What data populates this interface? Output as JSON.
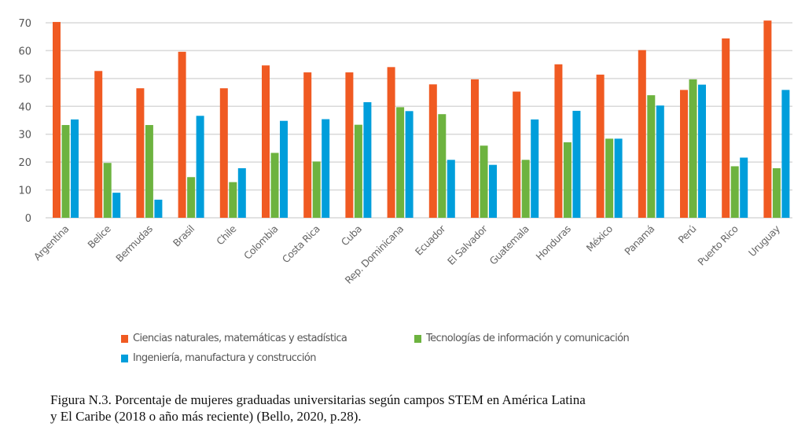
{
  "chart_data": {
    "type": "bar",
    "title": "",
    "xlabel": "",
    "ylabel": "",
    "ylim": [
      0,
      70
    ],
    "yticks": [
      0,
      10,
      20,
      30,
      40,
      50,
      60,
      70
    ],
    "ytick_labels": [
      "0",
      "10",
      "20",
      "30",
      "40",
      "50",
      "60",
      "70"
    ],
    "grid": true,
    "legend_position": "bottom",
    "categories": [
      "Argentina",
      "Belice",
      "Bermudas",
      "Brasil",
      "Chile",
      "Colombia",
      "Costa Rica",
      "Cuba",
      "Rep. Dominicana",
      "Ecuador",
      "El Salvador",
      "Guatemala",
      "Honduras",
      "México",
      "Panamá",
      "Perú",
      "Puerto Rico",
      "Uruguay"
    ],
    "series": [
      {
        "name": "Ciencias naturales, matemáticas y estadística",
        "color": "#F05A22",
        "values": [
          70.3,
          52.7,
          46.5,
          59.6,
          46.5,
          54.7,
          52.2,
          52.2,
          54.1,
          47.9,
          49.7,
          45.3,
          55.1,
          51.4,
          60.2,
          45.9,
          64.4,
          70.8
        ]
      },
      {
        "name": "Tecnologías de información y comunicación",
        "color": "#6DB33F",
        "values": [
          33.3,
          19.7,
          33.3,
          14.6,
          12.8,
          23.3,
          20.2,
          33.4,
          39.7,
          37.2,
          25.9,
          20.8,
          27.1,
          28.4,
          44.0,
          49.7,
          18.5,
          17.8
        ]
      },
      {
        "name": "Ingeniería, manufactura y construcción",
        "color": "#009EDB",
        "values": [
          35.3,
          9.0,
          6.5,
          36.6,
          17.8,
          34.8,
          35.4,
          41.5,
          38.3,
          20.8,
          19.0,
          35.3,
          38.4,
          28.4,
          40.3,
          47.8,
          21.6,
          45.9
        ]
      }
    ]
  },
  "legend": {
    "items": [
      {
        "label": "Ciencias naturales, matemáticas y estadística",
        "color": "#F05A22"
      },
      {
        "label": "Tecnologías de información y comunicación",
        "color": "#6DB33F"
      },
      {
        "label": "Ingeniería, manufactura y construcción",
        "color": "#009EDB"
      }
    ]
  },
  "caption": {
    "line1": "Figura N.3. Porcentaje de mujeres graduadas universitarias según campos STEM en América Latina",
    "line2": "y El Caribe (2018 o año más reciente) (Bello, 2020, p.28)."
  }
}
